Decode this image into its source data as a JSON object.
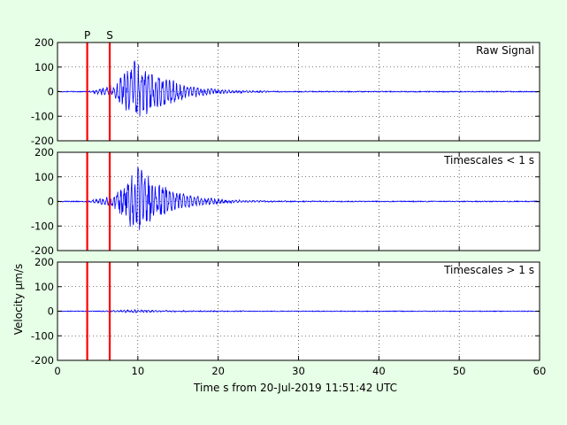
{
  "chart_data": {
    "type": "line",
    "xlabel": "Time s from 20-Jul-2019 11:51:42 UTC",
    "ylabel": "Velocity μm/s",
    "xlim": [
      0,
      60
    ],
    "xticks": [
      0,
      10,
      20,
      30,
      40,
      50,
      60
    ],
    "ylim": [
      -200,
      200
    ],
    "yticks": [
      -200,
      -100,
      0,
      100,
      200
    ],
    "grid": true,
    "line_color": "#0000ff",
    "marker_color": "#ff0000",
    "markers": [
      {
        "label": "P",
        "x": 3.7
      },
      {
        "label": "S",
        "x": 6.5
      }
    ],
    "panels": [
      {
        "label": "Raw Signal",
        "trace": {
          "noise": 2,
          "onset": 3.8,
          "peak_time": 10,
          "peak_amp": 150,
          "secondary": 45,
          "decay_end": 22
        }
      },
      {
        "label": "Timescales < 1 s",
        "trace": {
          "noise": 2,
          "onset": 3.8,
          "peak_time": 10,
          "peak_amp": 155,
          "secondary": 45,
          "decay_end": 22
        }
      },
      {
        "label": "Timescales > 1 s",
        "trace": {
          "noise": 1.5,
          "onset": 3.8,
          "peak_time": 9.5,
          "peak_amp": 6,
          "secondary": 3,
          "decay_end": 30
        }
      }
    ]
  }
}
